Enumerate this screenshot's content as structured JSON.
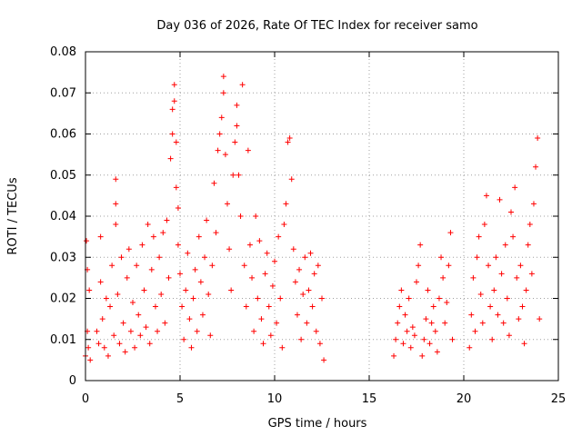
{
  "chart_data": {
    "type": "scatter",
    "title": "Day 036 of 2026, Rate Of TEC Index for receiver samo",
    "xlabel": "GPS time / hours",
    "ylabel": "ROTI / TECUs",
    "xlim": [
      0,
      25
    ],
    "ylim": [
      0,
      0.08
    ],
    "x_ticks": [
      "0",
      "5",
      "10",
      "15",
      "20",
      "25"
    ],
    "y_ticks": [
      "0",
      "0.01",
      "0.02",
      "0.03",
      "0.04",
      "0.05",
      "0.06",
      "0.07",
      "0.08"
    ],
    "grid": true,
    "marker": "+",
    "series_color": "#ff0000",
    "points": [
      [
        0.0,
        0.006
      ],
      [
        0.05,
        0.034
      ],
      [
        0.1,
        0.012
      ],
      [
        0.1,
        0.027
      ],
      [
        0.15,
        0.008
      ],
      [
        0.2,
        0.022
      ],
      [
        0.25,
        0.005
      ],
      [
        0.6,
        0.012
      ],
      [
        0.7,
        0.009
      ],
      [
        0.8,
        0.024
      ],
      [
        0.8,
        0.035
      ],
      [
        0.9,
        0.015
      ],
      [
        1.0,
        0.008
      ],
      [
        1.1,
        0.02
      ],
      [
        1.2,
        0.006
      ],
      [
        1.3,
        0.018
      ],
      [
        1.4,
        0.028
      ],
      [
        1.5,
        0.011
      ],
      [
        1.6,
        0.049
      ],
      [
        1.6,
        0.043
      ],
      [
        1.6,
        0.038
      ],
      [
        1.7,
        0.021
      ],
      [
        1.8,
        0.009
      ],
      [
        1.9,
        0.03
      ],
      [
        2.0,
        0.014
      ],
      [
        2.1,
        0.007
      ],
      [
        2.2,
        0.025
      ],
      [
        2.3,
        0.032
      ],
      [
        2.4,
        0.012
      ],
      [
        2.5,
        0.019
      ],
      [
        2.6,
        0.008
      ],
      [
        2.7,
        0.028
      ],
      [
        2.8,
        0.016
      ],
      [
        2.9,
        0.011
      ],
      [
        3.0,
        0.033
      ],
      [
        3.1,
        0.022
      ],
      [
        3.2,
        0.013
      ],
      [
        3.3,
        0.038
      ],
      [
        3.4,
        0.009
      ],
      [
        3.5,
        0.027
      ],
      [
        3.6,
        0.035
      ],
      [
        3.7,
        0.018
      ],
      [
        3.8,
        0.012
      ],
      [
        3.9,
        0.03
      ],
      [
        4.0,
        0.021
      ],
      [
        4.1,
        0.036
      ],
      [
        4.2,
        0.014
      ],
      [
        4.3,
        0.039
      ],
      [
        4.4,
        0.025
      ],
      [
        4.5,
        0.054
      ],
      [
        4.6,
        0.06
      ],
      [
        4.6,
        0.066
      ],
      [
        4.7,
        0.072
      ],
      [
        4.7,
        0.068
      ],
      [
        4.8,
        0.058
      ],
      [
        4.8,
        0.047
      ],
      [
        4.9,
        0.042
      ],
      [
        4.9,
        0.033
      ],
      [
        5.0,
        0.026
      ],
      [
        5.1,
        0.018
      ],
      [
        5.2,
        0.01
      ],
      [
        5.3,
        0.022
      ],
      [
        5.4,
        0.031
      ],
      [
        5.5,
        0.015
      ],
      [
        5.6,
        0.008
      ],
      [
        5.7,
        0.02
      ],
      [
        5.8,
        0.027
      ],
      [
        5.9,
        0.012
      ],
      [
        6.0,
        0.035
      ],
      [
        6.1,
        0.024
      ],
      [
        6.2,
        0.016
      ],
      [
        6.3,
        0.03
      ],
      [
        6.4,
        0.039
      ],
      [
        6.5,
        0.021
      ],
      [
        6.6,
        0.011
      ],
      [
        6.7,
        0.028
      ],
      [
        6.8,
        0.048
      ],
      [
        6.9,
        0.036
      ],
      [
        7.0,
        0.056
      ],
      [
        7.1,
        0.06
      ],
      [
        7.2,
        0.064
      ],
      [
        7.3,
        0.074
      ],
      [
        7.3,
        0.07
      ],
      [
        7.4,
        0.055
      ],
      [
        7.5,
        0.043
      ],
      [
        7.6,
        0.032
      ],
      [
        7.7,
        0.022
      ],
      [
        7.8,
        0.05
      ],
      [
        7.9,
        0.058
      ],
      [
        8.0,
        0.067
      ],
      [
        8.0,
        0.062
      ],
      [
        8.1,
        0.05
      ],
      [
        8.2,
        0.04
      ],
      [
        8.3,
        0.072
      ],
      [
        8.4,
        0.028
      ],
      [
        8.5,
        0.018
      ],
      [
        8.6,
        0.056
      ],
      [
        8.7,
        0.033
      ],
      [
        8.8,
        0.025
      ],
      [
        8.9,
        0.012
      ],
      [
        9.0,
        0.04
      ],
      [
        9.1,
        0.02
      ],
      [
        9.2,
        0.034
      ],
      [
        9.3,
        0.015
      ],
      [
        9.4,
        0.009
      ],
      [
        9.5,
        0.026
      ],
      [
        9.6,
        0.031
      ],
      [
        9.7,
        0.018
      ],
      [
        9.8,
        0.011
      ],
      [
        9.9,
        0.023
      ],
      [
        10.0,
        0.029
      ],
      [
        10.1,
        0.014
      ],
      [
        10.2,
        0.035
      ],
      [
        10.3,
        0.02
      ],
      [
        10.4,
        0.008
      ],
      [
        10.5,
        0.038
      ],
      [
        10.6,
        0.043
      ],
      [
        10.7,
        0.058
      ],
      [
        10.8,
        0.059
      ],
      [
        10.9,
        0.049
      ],
      [
        11.0,
        0.032
      ],
      [
        11.1,
        0.024
      ],
      [
        11.2,
        0.016
      ],
      [
        11.3,
        0.027
      ],
      [
        11.4,
        0.01
      ],
      [
        11.5,
        0.021
      ],
      [
        11.6,
        0.03
      ],
      [
        11.7,
        0.014
      ],
      [
        11.8,
        0.022
      ],
      [
        11.9,
        0.031
      ],
      [
        12.0,
        0.018
      ],
      [
        12.1,
        0.026
      ],
      [
        12.2,
        0.012
      ],
      [
        12.3,
        0.028
      ],
      [
        12.4,
        0.009
      ],
      [
        12.5,
        0.02
      ],
      [
        12.6,
        0.005
      ],
      [
        16.3,
        0.006
      ],
      [
        16.4,
        0.01
      ],
      [
        16.5,
        0.014
      ],
      [
        16.6,
        0.018
      ],
      [
        16.7,
        0.022
      ],
      [
        16.8,
        0.009
      ],
      [
        16.9,
        0.016
      ],
      [
        17.0,
        0.012
      ],
      [
        17.1,
        0.02
      ],
      [
        17.2,
        0.008
      ],
      [
        17.3,
        0.013
      ],
      [
        17.4,
        0.011
      ],
      [
        17.5,
        0.024
      ],
      [
        17.6,
        0.028
      ],
      [
        17.7,
        0.033
      ],
      [
        17.8,
        0.006
      ],
      [
        17.9,
        0.01
      ],
      [
        18.0,
        0.015
      ],
      [
        18.1,
        0.022
      ],
      [
        18.2,
        0.009
      ],
      [
        18.3,
        0.014
      ],
      [
        18.4,
        0.018
      ],
      [
        18.5,
        0.012
      ],
      [
        18.6,
        0.007
      ],
      [
        18.7,
        0.02
      ],
      [
        18.8,
        0.03
      ],
      [
        18.9,
        0.025
      ],
      [
        19.0,
        0.014
      ],
      [
        19.1,
        0.019
      ],
      [
        19.2,
        0.028
      ],
      [
        19.3,
        0.036
      ],
      [
        19.4,
        0.01
      ],
      [
        20.3,
        0.008
      ],
      [
        20.4,
        0.016
      ],
      [
        20.5,
        0.025
      ],
      [
        20.6,
        0.012
      ],
      [
        20.7,
        0.03
      ],
      [
        20.8,
        0.035
      ],
      [
        20.9,
        0.021
      ],
      [
        21.0,
        0.014
      ],
      [
        21.1,
        0.038
      ],
      [
        21.2,
        0.045
      ],
      [
        21.3,
        0.028
      ],
      [
        21.4,
        0.018
      ],
      [
        21.5,
        0.01
      ],
      [
        21.6,
        0.022
      ],
      [
        21.7,
        0.03
      ],
      [
        21.8,
        0.016
      ],
      [
        21.9,
        0.044
      ],
      [
        22.0,
        0.026
      ],
      [
        22.1,
        0.014
      ],
      [
        22.2,
        0.033
      ],
      [
        22.3,
        0.02
      ],
      [
        22.4,
        0.011
      ],
      [
        22.5,
        0.041
      ],
      [
        22.6,
        0.035
      ],
      [
        22.7,
        0.047
      ],
      [
        22.8,
        0.025
      ],
      [
        22.9,
        0.015
      ],
      [
        23.0,
        0.028
      ],
      [
        23.1,
        0.018
      ],
      [
        23.2,
        0.009
      ],
      [
        23.3,
        0.022
      ],
      [
        23.4,
        0.033
      ],
      [
        23.5,
        0.038
      ],
      [
        23.6,
        0.026
      ],
      [
        23.7,
        0.043
      ],
      [
        23.8,
        0.052
      ],
      [
        23.9,
        0.059
      ],
      [
        24.0,
        0.015
      ]
    ]
  }
}
